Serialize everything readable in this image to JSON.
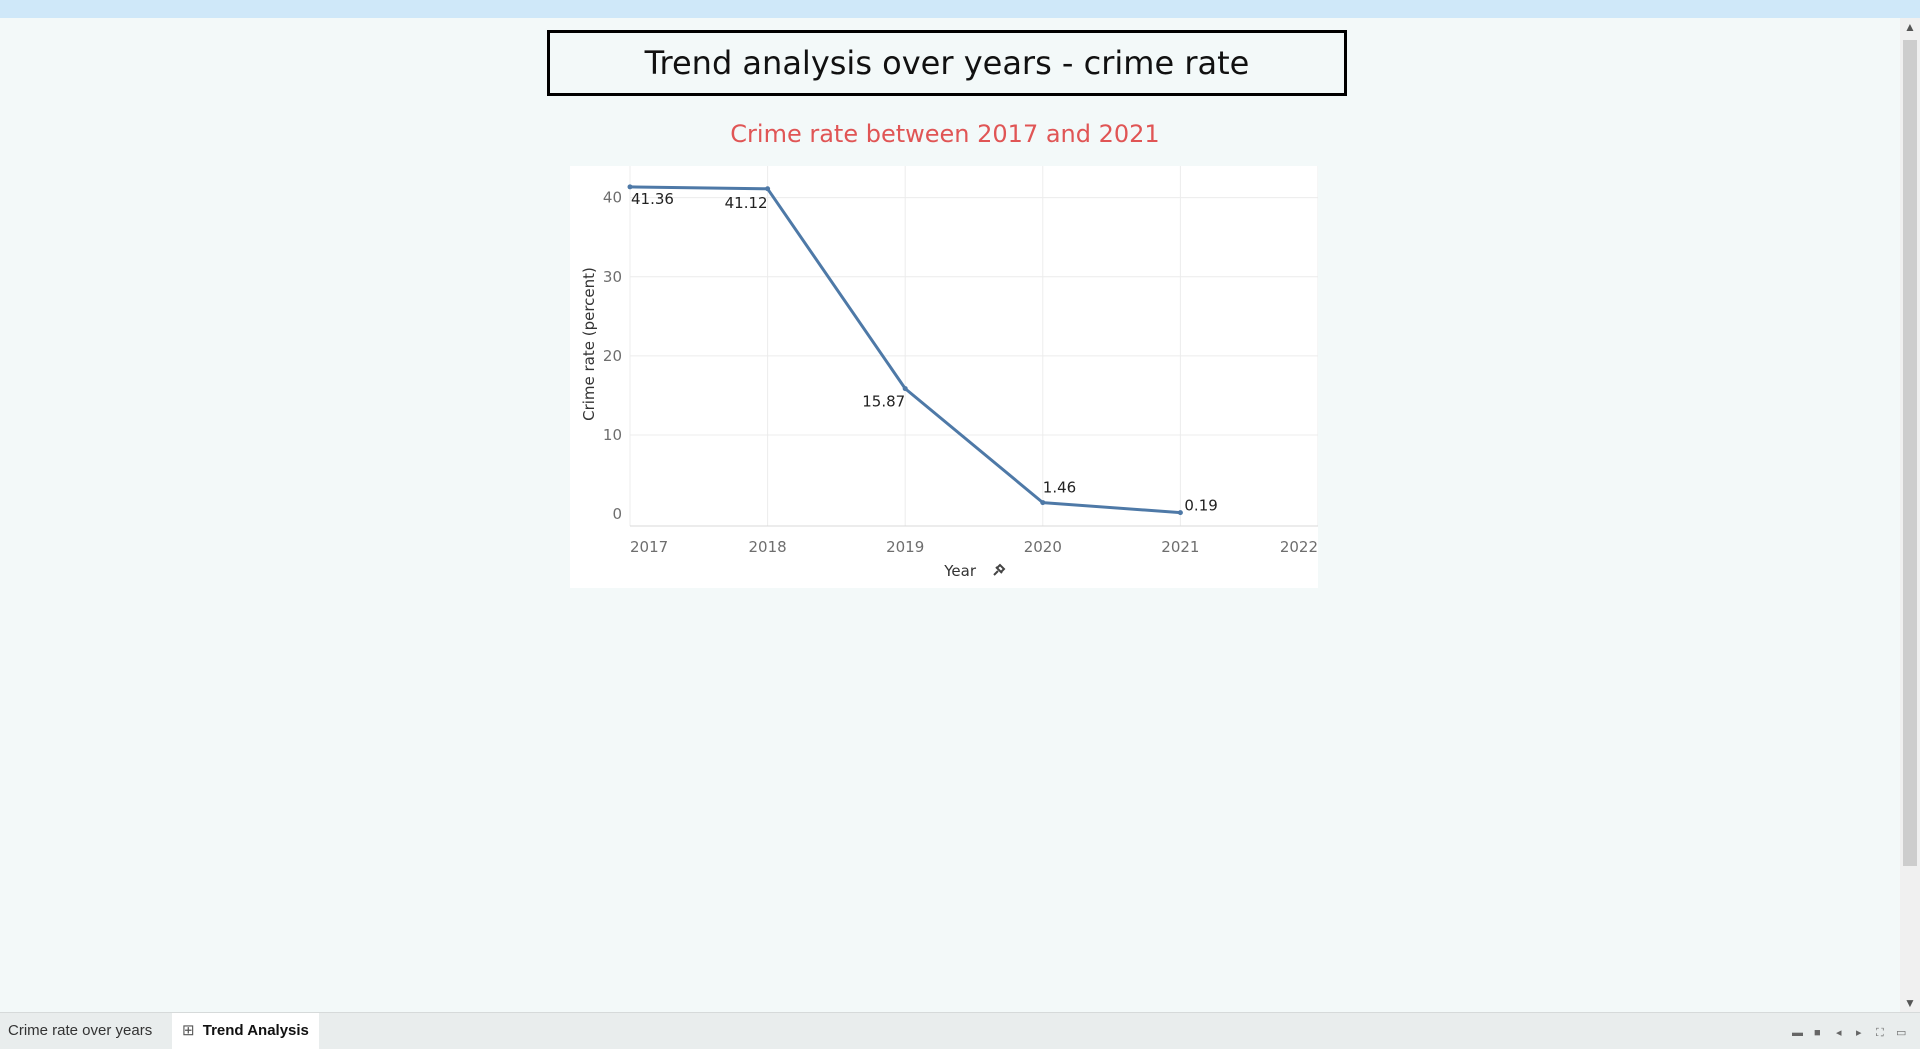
{
  "dashboard": {
    "title": "Trend analysis over years - crime rate"
  },
  "tabs": [
    {
      "label": "Crime rate over years",
      "active": false
    },
    {
      "label": "Trend Analysis",
      "active": true,
      "icon": "grid-icon"
    }
  ],
  "chart_data": {
    "type": "line",
    "title": "Crime rate between 2017 and 2021",
    "xlabel": "Year",
    "ylabel": "Crime rate (percent)",
    "x": [
      2017,
      2018,
      2019,
      2020,
      2021
    ],
    "values": [
      41.36,
      41.12,
      15.87,
      1.46,
      0.19
    ],
    "value_labels": [
      "41.36",
      "41.12",
      "15.87",
      "1.46",
      "0.19"
    ],
    "xlim": [
      2017,
      2022
    ],
    "ylim": [
      -1.5,
      44
    ],
    "x_ticks": [
      "2017",
      "2018",
      "2019",
      "2020",
      "2021",
      "2022"
    ],
    "y_ticks": [
      "0",
      "10",
      "20",
      "30",
      "40"
    ],
    "grid": true,
    "colors": {
      "line": "#4e79a7",
      "title": "#e05555"
    }
  }
}
